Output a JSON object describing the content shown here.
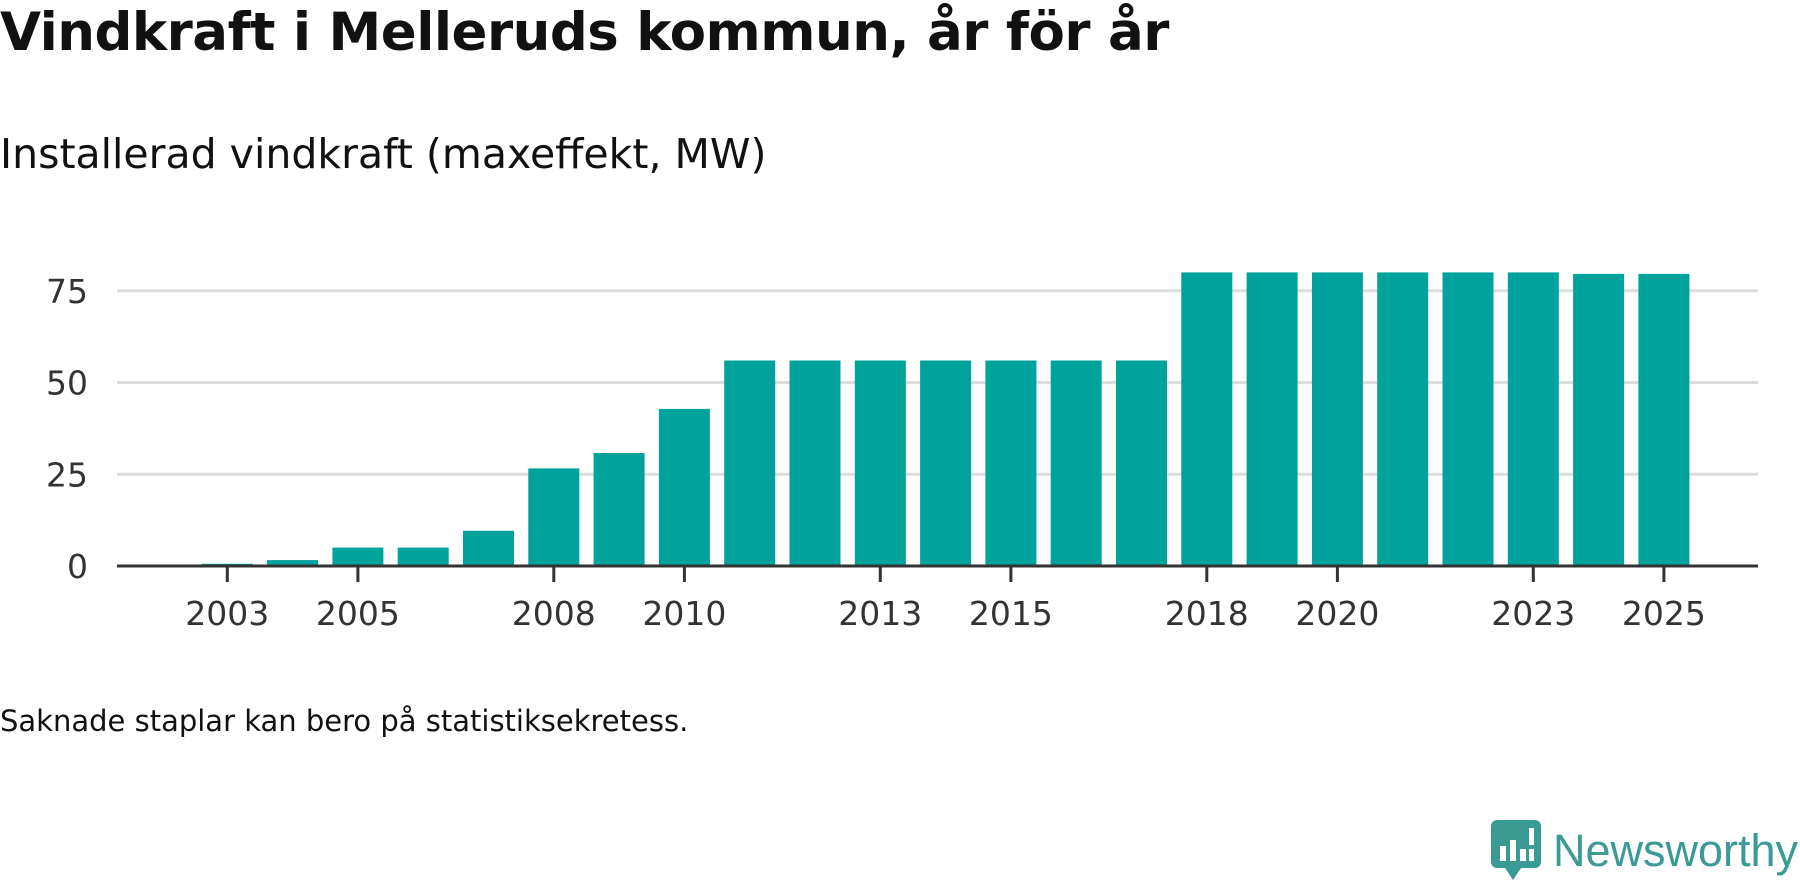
{
  "header": {
    "title": "Vindkraft i Melleruds kommun, år för år",
    "subtitle": "Installerad vindkraft (maxeffekt, MW)"
  },
  "footer": {
    "note": "Saknade staplar kan bero på statistiksekretess.",
    "brand": "Newsworthy"
  },
  "colors": {
    "bar": "#00a39b",
    "grid": "#dddddd",
    "axis": "#333333",
    "brand": "#3a9a94"
  },
  "chart_data": {
    "type": "bar",
    "title": "Installerad vindkraft (maxeffekt, MW)",
    "xlabel": "",
    "ylabel": "",
    "ylim": [
      0,
      85
    ],
    "yticks": [
      0,
      25,
      50,
      75
    ],
    "x_tick_labels": [
      "2003",
      "2005",
      "2008",
      "2010",
      "2013",
      "2015",
      "2018",
      "2020",
      "2023",
      "2025"
    ],
    "categories": [
      "2002",
      "2003",
      "2004",
      "2005",
      "2006",
      "2007",
      "2008",
      "2009",
      "2010",
      "2011",
      "2012",
      "2013",
      "2014",
      "2015",
      "2016",
      "2017",
      "2018",
      "2019",
      "2020",
      "2021",
      "2022",
      "2023",
      "2024",
      "2025"
    ],
    "values": [
      null,
      0.6,
      1.6,
      5,
      5,
      9.6,
      26.6,
      30.8,
      42.8,
      56,
      56,
      56,
      56,
      56,
      56,
      56,
      80,
      80,
      80,
      80,
      80,
      80,
      79.6,
      79.6
    ],
    "grid": true,
    "legend": "none"
  }
}
